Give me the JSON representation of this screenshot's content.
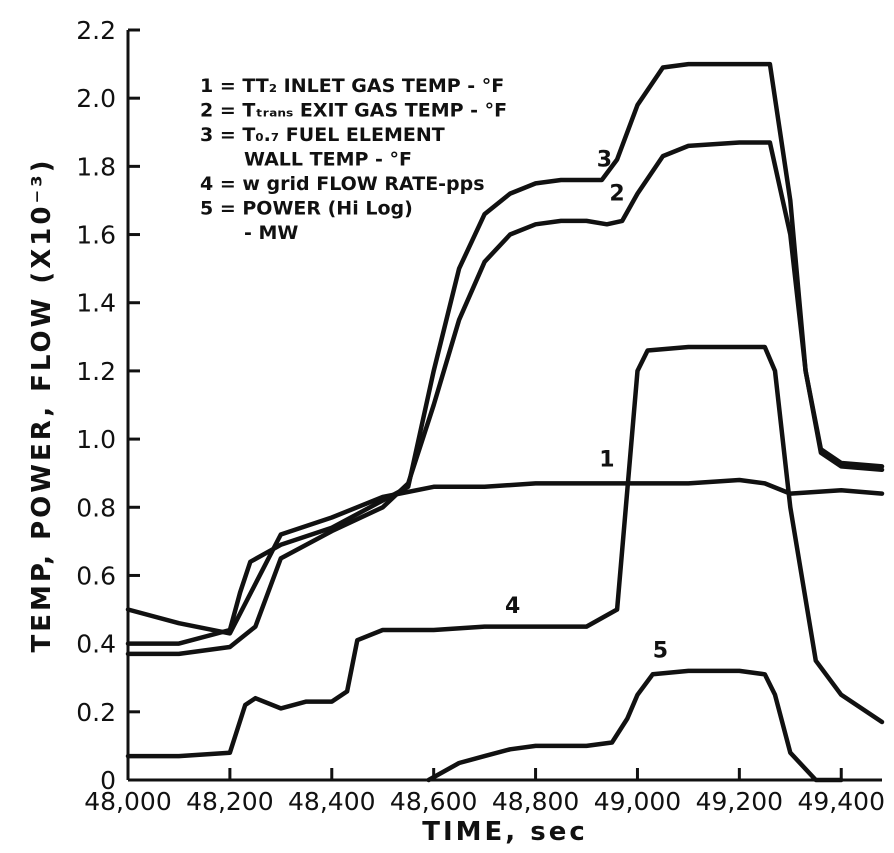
{
  "chart_data": {
    "type": "line",
    "xlabel": "TIME, sec",
    "ylabel": "TEMP, POWER, FLOW (X10⁻³)",
    "xlim": [
      48000,
      49480
    ],
    "ylim": [
      0,
      2.2
    ],
    "x_ticks": [
      48000,
      48200,
      48400,
      48600,
      48800,
      49000,
      49200,
      49400
    ],
    "x_tick_labels": [
      "48,000",
      "48,200",
      "48,400",
      "48,600",
      "48,800",
      "49,000",
      "49,200",
      "49,400"
    ],
    "y_ticks": [
      0,
      0.2,
      0.4,
      0.6,
      0.8,
      1.0,
      1.2,
      1.4,
      1.6,
      1.8,
      2.0,
      2.2
    ],
    "y_tick_labels": [
      "0",
      "0.2",
      "0.4",
      "0.6",
      "0.8",
      "1.0",
      "1.2",
      "1.4",
      "1.6",
      "1.8",
      "2.0",
      "2.2"
    ],
    "grid": false,
    "legend_position": "top-left",
    "legend": [
      "1 = TT₂ INLET GAS TEMP - °F",
      "2 = Tₜᵣₐₙₛ EXIT GAS TEMP - °F",
      "3 = T₀.₇ FUEL ELEMENT",
      "WALL TEMP - °F",
      "4 = w grid FLOW RATE-pps",
      "5 = POWER (Hi Log)",
      "- MW"
    ],
    "series": [
      {
        "label": "1",
        "x": [
          48000,
          48100,
          48200,
          48300,
          48400,
          48500,
          48600,
          48700,
          48800,
          48900,
          49000,
          49100,
          49200,
          49250,
          49300,
          49400,
          49480
        ],
        "y": [
          0.5,
          0.46,
          0.43,
          0.72,
          0.77,
          0.83,
          0.86,
          0.86,
          0.87,
          0.87,
          0.87,
          0.87,
          0.88,
          0.87,
          0.84,
          0.85,
          0.84
        ]
      },
      {
        "label": "2",
        "x": [
          48000,
          48100,
          48200,
          48250,
          48300,
          48400,
          48500,
          48550,
          48600,
          48650,
          48700,
          48750,
          48800,
          48850,
          48900,
          48940,
          48970,
          49000,
          49050,
          49100,
          49200,
          49260,
          49300,
          49330,
          49360,
          49400,
          49480
        ],
        "y": [
          0.37,
          0.37,
          0.39,
          0.45,
          0.65,
          0.73,
          0.8,
          0.87,
          1.1,
          1.35,
          1.52,
          1.6,
          1.63,
          1.64,
          1.64,
          1.63,
          1.64,
          1.72,
          1.83,
          1.86,
          1.87,
          1.87,
          1.6,
          1.2,
          0.96,
          0.92,
          0.91
        ]
      },
      {
        "label": "3",
        "x": [
          48000,
          48100,
          48200,
          48220,
          48240,
          48300,
          48400,
          48500,
          48550,
          48600,
          48650,
          48700,
          48750,
          48800,
          48850,
          48900,
          48930,
          48960,
          49000,
          49050,
          49100,
          49200,
          49260,
          49300,
          49330,
          49360,
          49400,
          49480
        ],
        "y": [
          0.4,
          0.4,
          0.44,
          0.55,
          0.64,
          0.69,
          0.74,
          0.82,
          0.86,
          1.2,
          1.5,
          1.66,
          1.72,
          1.75,
          1.76,
          1.76,
          1.76,
          1.82,
          1.98,
          2.09,
          2.1,
          2.1,
          2.1,
          1.7,
          1.2,
          0.97,
          0.93,
          0.92
        ]
      },
      {
        "label": "4",
        "x": [
          48000,
          48100,
          48200,
          48230,
          48250,
          48300,
          48350,
          48400,
          48430,
          48450,
          48500,
          48600,
          48700,
          48800,
          48900,
          48960,
          48980,
          49000,
          49020,
          49100,
          49200,
          49250,
          49270,
          49300,
          49350,
          49400,
          49480
        ],
        "y": [
          0.07,
          0.07,
          0.08,
          0.22,
          0.24,
          0.21,
          0.23,
          0.23,
          0.26,
          0.41,
          0.44,
          0.44,
          0.45,
          0.45,
          0.45,
          0.5,
          0.85,
          1.2,
          1.26,
          1.27,
          1.27,
          1.27,
          1.2,
          0.8,
          0.35,
          0.25,
          0.17
        ]
      },
      {
        "label": "5",
        "x": [
          48590,
          48650,
          48700,
          48750,
          48800,
          48900,
          48950,
          48980,
          49000,
          49030,
          49100,
          49200,
          49250,
          49270,
          49300,
          49350,
          49400
        ],
        "y": [
          0.0,
          0.05,
          0.07,
          0.09,
          0.1,
          0.1,
          0.11,
          0.18,
          0.25,
          0.31,
          0.32,
          0.32,
          0.31,
          0.25,
          0.08,
          0.0,
          0.0
        ]
      }
    ],
    "curve_labels": [
      {
        "text": "1",
        "x": 48940,
        "y": 0.92
      },
      {
        "text": "2",
        "x": 48960,
        "y": 1.7
      },
      {
        "text": "3",
        "x": 48935,
        "y": 1.8
      },
      {
        "text": "4",
        "x": 48755,
        "y": 0.49
      },
      {
        "text": "5",
        "x": 49045,
        "y": 0.36
      }
    ]
  }
}
